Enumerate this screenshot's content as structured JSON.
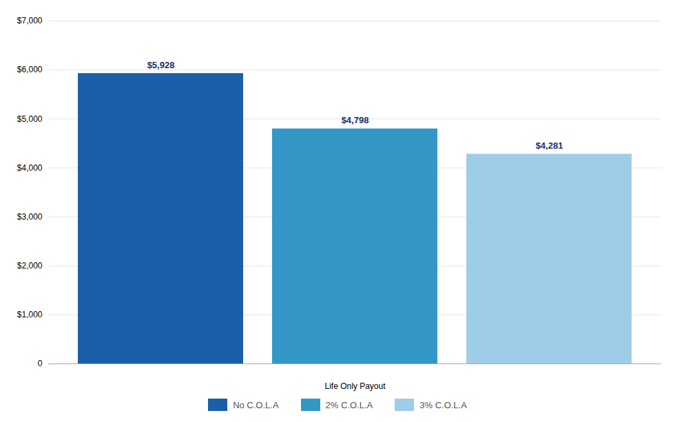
{
  "chart_data": {
    "type": "bar",
    "xlabel": "Life Only Payout",
    "categories": [
      "No C.O.L.A",
      "2% C.O.L.A",
      "3% C.O.L.A"
    ],
    "values": [
      5928,
      4798,
      4281
    ],
    "value_labels": [
      "$5,928",
      "$4,798",
      "$4,281"
    ],
    "data_labels": true,
    "colors": [
      "#1a5fa8",
      "#3398c8",
      "#9fcde8"
    ],
    "ylim": [
      0,
      7000
    ],
    "yticks": [
      0,
      {
        "value": 1000,
        "label": "$1,000"
      },
      {
        "value": 2000,
        "label": "$2,000"
      },
      {
        "value": 3000,
        "label": "$3,000"
      },
      {
        "value": 4000,
        "label": "$4,000"
      },
      {
        "value": 5000,
        "label": "$5,000"
      },
      {
        "value": 6000,
        "label": "$6,000"
      },
      {
        "value": 7000,
        "label": "$7,000"
      }
    ],
    "grid": true,
    "legend": "bottom",
    "tick_labels": "y"
  }
}
